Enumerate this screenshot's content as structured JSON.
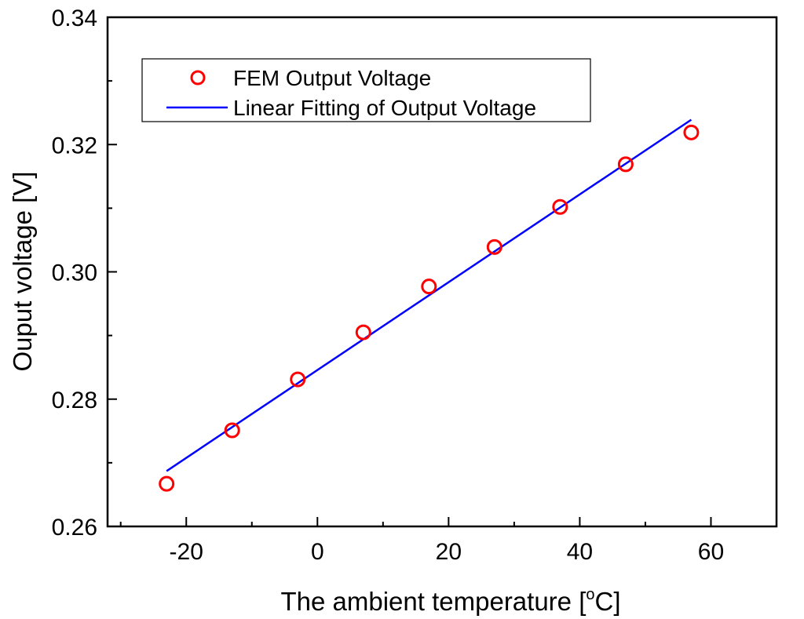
{
  "chart_data": {
    "type": "scatter",
    "title": "",
    "xlabel": "The ambient temperature [",
    "xlabel_sup": "o",
    "xlabel_end": "C]",
    "ylabel": "Ouput voltage [V]",
    "xlim": [
      -32,
      70
    ],
    "ylim": [
      0.26,
      0.34
    ],
    "x_ticks": [
      -20,
      0,
      20,
      40,
      60
    ],
    "x_tick_labels": [
      "-20",
      "0",
      "20",
      "40",
      "60"
    ],
    "x_minor_ticks": [
      -30,
      -10,
      10,
      30,
      50,
      70
    ],
    "y_ticks": [
      0.26,
      0.28,
      0.3,
      0.32,
      0.34
    ],
    "y_tick_labels": [
      "0.26",
      "0.28",
      "0.30",
      "0.32",
      "0.34"
    ],
    "y_minor_ticks": [
      0.27,
      0.29,
      0.31,
      0.33
    ],
    "legend_position": "top-left",
    "series": [
      {
        "name": "FEM Output Voltage",
        "kind": "marker",
        "color": "#ff0000",
        "x": [
          -23,
          -13,
          -3,
          7,
          17,
          27,
          37,
          47,
          57
        ],
        "y": [
          0.2667,
          0.2751,
          0.2831,
          0.2905,
          0.2977,
          0.3039,
          0.3102,
          0.3169,
          0.3219
        ]
      },
      {
        "name": "Linear Fitting of Output Voltage",
        "kind": "line",
        "color": "#0000ff",
        "x": [
          -23,
          57
        ],
        "y": [
          0.2687,
          0.3239
        ]
      }
    ]
  }
}
